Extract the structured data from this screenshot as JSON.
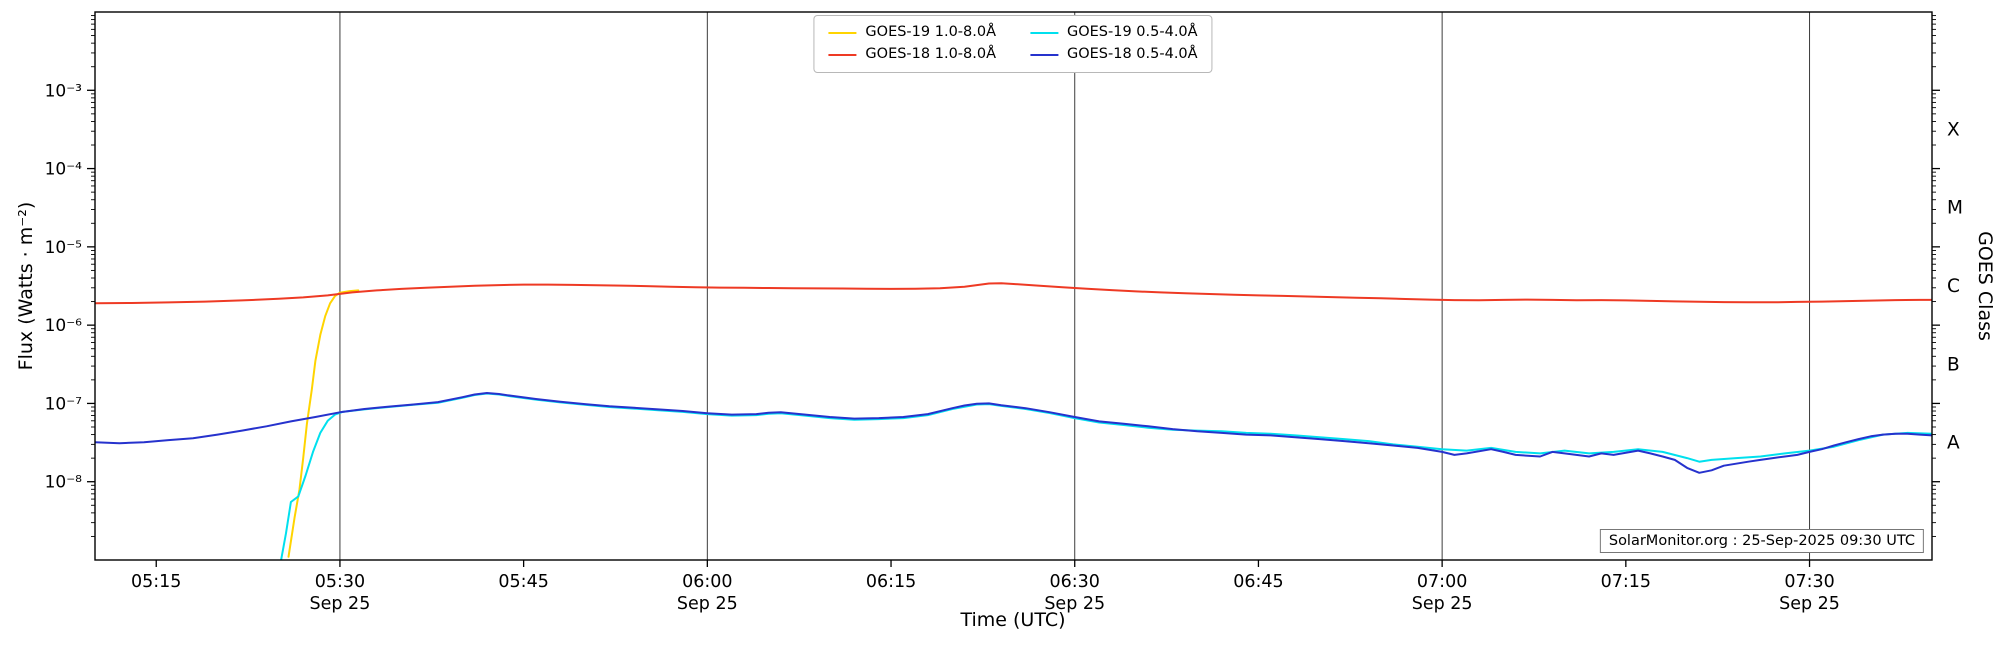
{
  "axes": {
    "x_label": "Time (UTC)",
    "y_left_label": "Flux (Watts · m⁻²)",
    "y_right_label": "GOES Class",
    "x_ticks": [
      {
        "label": "05:15",
        "minutes": 315,
        "sub": ""
      },
      {
        "label": "05:30",
        "minutes": 330,
        "sub": "Sep 25"
      },
      {
        "label": "05:45",
        "minutes": 345,
        "sub": ""
      },
      {
        "label": "06:00",
        "minutes": 360,
        "sub": "Sep 25"
      },
      {
        "label": "06:15",
        "minutes": 375,
        "sub": ""
      },
      {
        "label": "06:30",
        "minutes": 390,
        "sub": "Sep 25"
      },
      {
        "label": "06:45",
        "minutes": 405,
        "sub": ""
      },
      {
        "label": "07:00",
        "minutes": 420,
        "sub": "Sep 25"
      },
      {
        "label": "07:15",
        "minutes": 435,
        "sub": ""
      },
      {
        "label": "07:30",
        "minutes": 450,
        "sub": "Sep 25"
      }
    ],
    "y_ticks": [
      {
        "label": "10⁻³",
        "value": 0.001
      },
      {
        "label": "10⁻⁴",
        "value": 0.0001
      },
      {
        "label": "10⁻⁵",
        "value": 1e-05
      },
      {
        "label": "10⁻⁶",
        "value": 1e-06
      },
      {
        "label": "10⁻⁷",
        "value": 1e-07
      },
      {
        "label": "10⁻⁸",
        "value": 1e-08
      }
    ],
    "class_labels": [
      {
        "label": "X",
        "value": 0.0003162
      },
      {
        "label": "M",
        "value": 3.162e-05
      },
      {
        "label": "C",
        "value": 3.162e-06
      },
      {
        "label": "B",
        "value": 3.162e-07
      },
      {
        "label": "A",
        "value": 3.162e-08
      }
    ]
  },
  "legend": {
    "items": [
      {
        "label": "GOES-19 1.0-8.0Å",
        "color": "#ffd400"
      },
      {
        "label": "GOES-18 1.0-8.0Å",
        "color": "#ee3a24"
      },
      {
        "label": "GOES-19 0.5-4.0Å",
        "color": "#00e0ee"
      },
      {
        "label": "GOES-18 0.5-4.0Å",
        "color": "#2632cd"
      }
    ]
  },
  "annotation": "SolarMonitor.org : 25-Sep-2025 09:30 UTC",
  "chart_data": {
    "type": "line",
    "title": "",
    "xlabel": "Time (UTC)",
    "ylabel": "Flux (Watts · m⁻²)",
    "ylabel_right": "GOES Class",
    "x_unit": "minutes after 00:00 UTC on 25-Sep-2025",
    "x_range": [
      310,
      460
    ],
    "y_scale": "log",
    "y_range": [
      1e-09,
      0.01
    ],
    "gridlines_minutes": [
      330,
      360,
      390,
      420,
      450
    ],
    "grid": "vertical lines at 30-minute marks",
    "legend_position": "top center",
    "series": [
      {
        "name": "GOES-19 1.0-8.0A",
        "color": "#ffd400",
        "points": [
          [
            325.8,
            1.1e-09
          ],
          [
            326.3,
            3.5e-09
          ],
          [
            326.7,
            8e-09
          ],
          [
            327.0,
            2e-08
          ],
          [
            327.3,
            5.5e-08
          ],
          [
            327.7,
            1.5e-07
          ],
          [
            328.0,
            3.5e-07
          ],
          [
            328.4,
            7.5e-07
          ],
          [
            328.8,
            1.3e-06
          ],
          [
            329.2,
            1.9e-06
          ],
          [
            329.6,
            2.35e-06
          ],
          [
            330.0,
            2.6e-06
          ],
          [
            330.8,
            2.72e-06
          ],
          [
            331.5,
            2.78e-06
          ]
        ]
      },
      {
        "name": "GOES-19 0.5-4.0A",
        "color": "#00e0ee",
        "points": [
          [
            325.2,
            1e-09
          ],
          [
            325.6,
            2.2e-09
          ],
          [
            326.0,
            5.5e-09
          ],
          [
            326.6,
            6.5e-09
          ],
          [
            327.2,
            1.2e-08
          ],
          [
            327.8,
            2.4e-08
          ],
          [
            328.4,
            4.2e-08
          ],
          [
            329.0,
            6e-08
          ],
          [
            329.6,
            7.2e-08
          ],
          [
            330.2,
            7.8e-08
          ],
          [
            332,
            8.4e-08
          ],
          [
            334,
            9e-08
          ],
          [
            336,
            9.6e-08
          ],
          [
            338,
            1.02e-07
          ],
          [
            340,
            1.18e-07
          ],
          [
            341,
            1.28e-07
          ],
          [
            342,
            1.34e-07
          ],
          [
            343,
            1.3e-07
          ],
          [
            344,
            1.23e-07
          ],
          [
            346,
            1.12e-07
          ],
          [
            348,
            1.03e-07
          ],
          [
            350,
            9.6e-08
          ],
          [
            352,
            9e-08
          ],
          [
            354,
            8.6e-08
          ],
          [
            356,
            8.2e-08
          ],
          [
            358,
            7.8e-08
          ],
          [
            360,
            7.3e-08
          ],
          [
            362,
            7e-08
          ],
          [
            364,
            7.1e-08
          ],
          [
            365,
            7.4e-08
          ],
          [
            366,
            7.5e-08
          ],
          [
            368,
            7e-08
          ],
          [
            370,
            6.5e-08
          ],
          [
            372,
            6.2e-08
          ],
          [
            374,
            6.3e-08
          ],
          [
            376,
            6.5e-08
          ],
          [
            378,
            7.1e-08
          ],
          [
            380,
            8.5e-08
          ],
          [
            382,
            9.7e-08
          ],
          [
            383,
            9.8e-08
          ],
          [
            384,
            9.3e-08
          ],
          [
            386,
            8.5e-08
          ],
          [
            388,
            7.5e-08
          ],
          [
            390,
            6.5e-08
          ],
          [
            392,
            5.7e-08
          ],
          [
            394,
            5.3e-08
          ],
          [
            396,
            4.9e-08
          ],
          [
            398,
            4.6e-08
          ],
          [
            400,
            4.5e-08
          ],
          [
            402,
            4.4e-08
          ],
          [
            404,
            4.2e-08
          ],
          [
            406,
            4.1e-08
          ],
          [
            408,
            3.9e-08
          ],
          [
            410,
            3.7e-08
          ],
          [
            412,
            3.5e-08
          ],
          [
            414,
            3.3e-08
          ],
          [
            416,
            3e-08
          ],
          [
            418,
            2.8e-08
          ],
          [
            420,
            2.6e-08
          ],
          [
            422,
            2.5e-08
          ],
          [
            424,
            2.7e-08
          ],
          [
            426,
            2.4e-08
          ],
          [
            428,
            2.3e-08
          ],
          [
            430,
            2.5e-08
          ],
          [
            432,
            2.3e-08
          ],
          [
            434,
            2.4e-08
          ],
          [
            436,
            2.6e-08
          ],
          [
            438,
            2.4e-08
          ],
          [
            440,
            2e-08
          ],
          [
            441,
            1.8e-08
          ],
          [
            442,
            1.9e-08
          ],
          [
            444,
            2e-08
          ],
          [
            446,
            2.1e-08
          ],
          [
            448,
            2.3e-08
          ],
          [
            450,
            2.5e-08
          ],
          [
            452,
            2.8e-08
          ],
          [
            454,
            3.4e-08
          ],
          [
            456,
            4e-08
          ],
          [
            458,
            4.2e-08
          ],
          [
            460,
            4.1e-08
          ]
        ]
      },
      {
        "name": "GOES-18 1.0-8.0A",
        "color": "#ee3a24",
        "points": [
          [
            310,
            1.9e-06
          ],
          [
            313,
            1.92e-06
          ],
          [
            316,
            1.95e-06
          ],
          [
            319,
            2e-06
          ],
          [
            322,
            2.07e-06
          ],
          [
            325,
            2.17e-06
          ],
          [
            327,
            2.26e-06
          ],
          [
            329,
            2.4e-06
          ],
          [
            331,
            2.62e-06
          ],
          [
            333,
            2.78e-06
          ],
          [
            335,
            2.9e-06
          ],
          [
            337,
            3e-06
          ],
          [
            339,
            3.1e-06
          ],
          [
            341,
            3.18e-06
          ],
          [
            343,
            3.25e-06
          ],
          [
            345,
            3.3e-06
          ],
          [
            347,
            3.3e-06
          ],
          [
            349,
            3.27e-06
          ],
          [
            351,
            3.24e-06
          ],
          [
            353,
            3.2e-06
          ],
          [
            355,
            3.15e-06
          ],
          [
            357,
            3.1e-06
          ],
          [
            359,
            3.05e-06
          ],
          [
            361,
            3.02e-06
          ],
          [
            363,
            3e-06
          ],
          [
            365,
            2.98e-06
          ],
          [
            367,
            2.96e-06
          ],
          [
            369,
            2.95e-06
          ],
          [
            371,
            2.94e-06
          ],
          [
            373,
            2.92e-06
          ],
          [
            375,
            2.9e-06
          ],
          [
            377,
            2.91e-06
          ],
          [
            379,
            2.96e-06
          ],
          [
            381,
            3.1e-06
          ],
          [
            382,
            3.25e-06
          ],
          [
            383,
            3.4e-06
          ],
          [
            384,
            3.42e-06
          ],
          [
            385,
            3.35e-06
          ],
          [
            387,
            3.2e-06
          ],
          [
            389,
            3.05e-06
          ],
          [
            391,
            2.92e-06
          ],
          [
            393,
            2.8e-06
          ],
          [
            395,
            2.7e-06
          ],
          [
            397,
            2.62e-06
          ],
          [
            399,
            2.55e-06
          ],
          [
            401,
            2.5e-06
          ],
          [
            403,
            2.45e-06
          ],
          [
            405,
            2.4e-06
          ],
          [
            407,
            2.36e-06
          ],
          [
            409,
            2.32e-06
          ],
          [
            411,
            2.28e-06
          ],
          [
            413,
            2.24e-06
          ],
          [
            415,
            2.2e-06
          ],
          [
            417,
            2.16e-06
          ],
          [
            419,
            2.12e-06
          ],
          [
            421,
            2.09e-06
          ],
          [
            423,
            2.08e-06
          ],
          [
            425,
            2.1e-06
          ],
          [
            427,
            2.12e-06
          ],
          [
            429,
            2.1e-06
          ],
          [
            431,
            2.08e-06
          ],
          [
            433,
            2.09e-06
          ],
          [
            435,
            2.07e-06
          ],
          [
            437,
            2.04e-06
          ],
          [
            439,
            2.01e-06
          ],
          [
            441,
            1.99e-06
          ],
          [
            443,
            1.97e-06
          ],
          [
            445,
            1.96e-06
          ],
          [
            447,
            1.96e-06
          ],
          [
            449,
            1.98e-06
          ],
          [
            451,
            2e-06
          ],
          [
            453,
            2.03e-06
          ],
          [
            455,
            2.06e-06
          ],
          [
            457,
            2.09e-06
          ],
          [
            459,
            2.1e-06
          ],
          [
            460,
            2.1e-06
          ]
        ]
      },
      {
        "name": "GOES-18 0.5-4.0A",
        "color": "#2632cd",
        "points": [
          [
            310,
            3.2e-08
          ],
          [
            312,
            3.1e-08
          ],
          [
            314,
            3.2e-08
          ],
          [
            316,
            3.4e-08
          ],
          [
            318,
            3.6e-08
          ],
          [
            320,
            4e-08
          ],
          [
            322,
            4.5e-08
          ],
          [
            324,
            5.1e-08
          ],
          [
            326,
            5.9e-08
          ],
          [
            328,
            6.7e-08
          ],
          [
            330,
            7.7e-08
          ],
          [
            332,
            8.5e-08
          ],
          [
            334,
            9.1e-08
          ],
          [
            336,
            9.7e-08
          ],
          [
            338,
            1.04e-07
          ],
          [
            340,
            1.2e-07
          ],
          [
            341,
            1.3e-07
          ],
          [
            342,
            1.36e-07
          ],
          [
            343,
            1.32e-07
          ],
          [
            344,
            1.25e-07
          ],
          [
            346,
            1.14e-07
          ],
          [
            348,
            1.05e-07
          ],
          [
            350,
            9.8e-08
          ],
          [
            352,
            9.2e-08
          ],
          [
            354,
            8.8e-08
          ],
          [
            356,
            8.4e-08
          ],
          [
            358,
            8e-08
          ],
          [
            360,
            7.5e-08
          ],
          [
            362,
            7.2e-08
          ],
          [
            364,
            7.3e-08
          ],
          [
            365,
            7.6e-08
          ],
          [
            366,
            7.7e-08
          ],
          [
            368,
            7.2e-08
          ],
          [
            370,
            6.7e-08
          ],
          [
            372,
            6.4e-08
          ],
          [
            374,
            6.5e-08
          ],
          [
            376,
            6.7e-08
          ],
          [
            378,
            7.3e-08
          ],
          [
            380,
            8.7e-08
          ],
          [
            381,
            9.4e-08
          ],
          [
            382,
            9.9e-08
          ],
          [
            383,
            1e-07
          ],
          [
            384,
            9.5e-08
          ],
          [
            386,
            8.7e-08
          ],
          [
            388,
            7.7e-08
          ],
          [
            390,
            6.7e-08
          ],
          [
            392,
            5.9e-08
          ],
          [
            394,
            5.5e-08
          ],
          [
            396,
            5.1e-08
          ],
          [
            398,
            4.7e-08
          ],
          [
            400,
            4.4e-08
          ],
          [
            402,
            4.2e-08
          ],
          [
            404,
            4e-08
          ],
          [
            406,
            3.9e-08
          ],
          [
            408,
            3.7e-08
          ],
          [
            410,
            3.5e-08
          ],
          [
            412,
            3.3e-08
          ],
          [
            414,
            3.1e-08
          ],
          [
            416,
            2.9e-08
          ],
          [
            418,
            2.7e-08
          ],
          [
            420,
            2.4e-08
          ],
          [
            421,
            2.2e-08
          ],
          [
            422,
            2.3e-08
          ],
          [
            424,
            2.6e-08
          ],
          [
            425,
            2.4e-08
          ],
          [
            426,
            2.2e-08
          ],
          [
            428,
            2.1e-08
          ],
          [
            429,
            2.4e-08
          ],
          [
            430,
            2.3e-08
          ],
          [
            432,
            2.1e-08
          ],
          [
            433,
            2.3e-08
          ],
          [
            434,
            2.2e-08
          ],
          [
            436,
            2.5e-08
          ],
          [
            437,
            2.3e-08
          ],
          [
            438,
            2.1e-08
          ],
          [
            439,
            1.9e-08
          ],
          [
            440,
            1.5e-08
          ],
          [
            441,
            1.3e-08
          ],
          [
            442,
            1.4e-08
          ],
          [
            443,
            1.6e-08
          ],
          [
            444,
            1.7e-08
          ],
          [
            445,
            1.8e-08
          ],
          [
            446,
            1.9e-08
          ],
          [
            447,
            2e-08
          ],
          [
            448,
            2.1e-08
          ],
          [
            449,
            2.2e-08
          ],
          [
            450,
            2.4e-08
          ],
          [
            451,
            2.6e-08
          ],
          [
            452,
            2.9e-08
          ],
          [
            453,
            3.2e-08
          ],
          [
            454,
            3.5e-08
          ],
          [
            455,
            3.8e-08
          ],
          [
            456,
            4e-08
          ],
          [
            457,
            4.1e-08
          ],
          [
            458,
            4.1e-08
          ],
          [
            459,
            4e-08
          ],
          [
            460,
            3.9e-08
          ]
        ]
      }
    ]
  }
}
